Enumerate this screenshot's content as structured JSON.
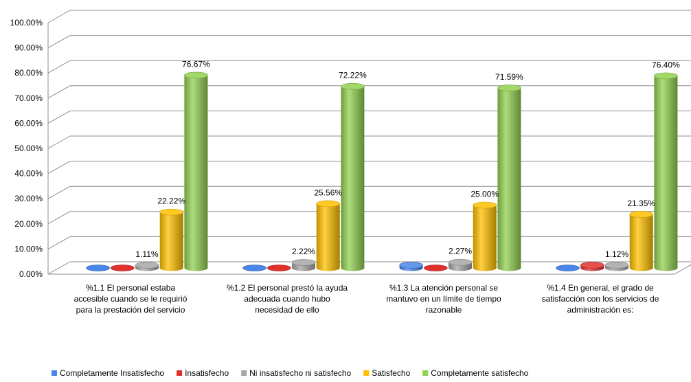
{
  "chart_data": {
    "type": "bar",
    "three_d": true,
    "bar_shape": "cylinder",
    "ylim": [
      0,
      100
    ],
    "y_tick_labels": [
      "0.00%",
      "10.00%",
      "20.00%",
      "30.00%",
      "40.00%",
      "50.00%",
      "60.00%",
      "70.00%",
      "80.00%",
      "90.00%",
      "100.00%"
    ],
    "categories": [
      [
        "%1.1 El personal estaba",
        "accesible cuando se le requirió",
        "para la prestación del servicio"
      ],
      [
        "%1.2 El personal prestó la ayuda",
        "adecuada cuando hubo",
        "necesidad de ello"
      ],
      [
        "%1.3 La atención personal se",
        "mantuvo en un límite de tiempo",
        "razonable"
      ],
      [
        "%1.4 En general, el grado de",
        "satisfacción con los servicios de",
        "administración es:"
      ]
    ],
    "series": [
      {
        "name": "Completamente Insatisfecho",
        "color": "#4a86e8",
        "values": [
          0,
          0,
          1.14,
          0
        ],
        "labels": [
          "",
          "",
          "",
          ""
        ]
      },
      {
        "name": "Insatisfecho",
        "color": "#e0312d",
        "values": [
          0,
          0,
          0,
          1.12
        ],
        "labels": [
          "",
          "",
          "",
          ""
        ]
      },
      {
        "name": "Ni insatisfecho ni satisfecho",
        "color": "#a6a6a6",
        "values": [
          1.11,
          2.22,
          2.27,
          1.12
        ],
        "labels": [
          "1.11%",
          "2.22%",
          "2.27%",
          "1.12%"
        ]
      },
      {
        "name": "Satisfecho",
        "color": "#ffc000",
        "values": [
          22.22,
          25.56,
          25.0,
          21.35
        ],
        "labels": [
          "22.22%",
          "25.56%",
          "25.00%",
          "21.35%"
        ]
      },
      {
        "name": "Completamente satisfecho",
        "color": "#92d050",
        "values": [
          76.67,
          72.22,
          71.59,
          76.4
        ],
        "labels": [
          "76.67%",
          "72.22%",
          "71.59%",
          "76.40%"
        ]
      }
    ],
    "grid": true,
    "legend_position": "bottom"
  }
}
